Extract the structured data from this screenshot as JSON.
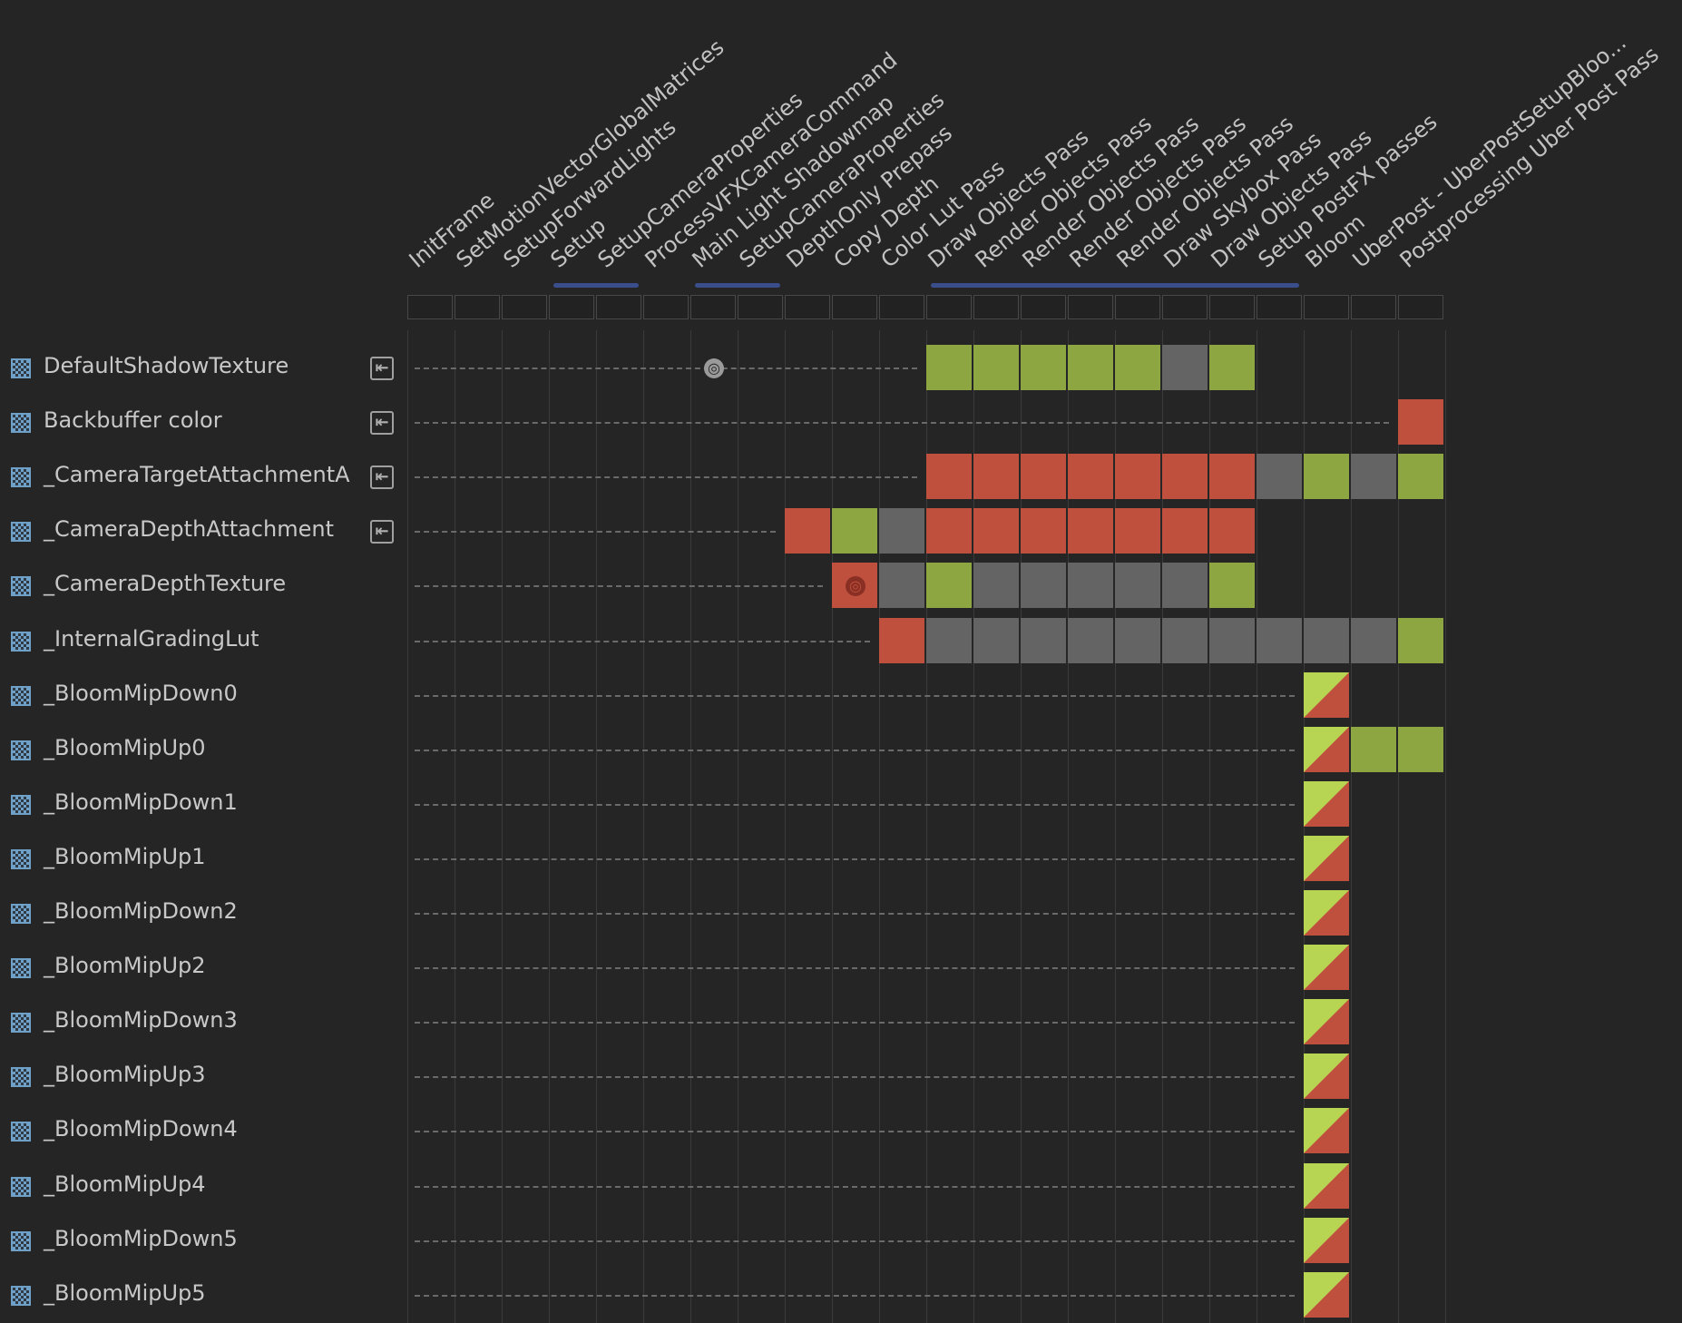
{
  "passes": [
    {
      "name": "InitFrame"
    },
    {
      "name": "SetMotionVectorGlobalMatrices"
    },
    {
      "name": "SetupForwardLights"
    },
    {
      "name": "Setup"
    },
    {
      "name": "SetupCameraProperties"
    },
    {
      "name": "ProcessVFXCameraCommand"
    },
    {
      "name": "Main Light Shadowmap"
    },
    {
      "name": "SetupCameraProperties"
    },
    {
      "name": "DepthOnly Prepass"
    },
    {
      "name": "Copy Depth"
    },
    {
      "name": "Color Lut Pass"
    },
    {
      "name": "Draw Objects Pass"
    },
    {
      "name": "Render Objects Pass"
    },
    {
      "name": "Render Objects Pass"
    },
    {
      "name": "Render Objects Pass"
    },
    {
      "name": "Render Objects Pass"
    },
    {
      "name": "Draw Skybox Pass"
    },
    {
      "name": "Draw Objects Pass"
    },
    {
      "name": "Setup PostFX passes"
    },
    {
      "name": "Bloom"
    },
    {
      "name": "UberPost - UberPostSetupBloo..."
    },
    {
      "name": "Postprocessing Uber Post Pass"
    }
  ],
  "pass_groups": [
    {
      "start": 3,
      "end": 4
    },
    {
      "start": 6,
      "end": 7
    },
    {
      "start": 11,
      "end": 18
    }
  ],
  "resources": [
    {
      "name": "DefaultShadowTexture",
      "imported": true,
      "dash_end": 11,
      "globe": 6,
      "globe_dark": false,
      "cells": [
        [
          11,
          "read"
        ],
        [
          12,
          "read"
        ],
        [
          13,
          "read"
        ],
        [
          14,
          "read"
        ],
        [
          15,
          "read"
        ],
        [
          16,
          "unused"
        ],
        [
          17,
          "read"
        ]
      ]
    },
    {
      "name": "Backbuffer color",
      "imported": true,
      "dash_end": 21,
      "cells": [
        [
          21,
          "write"
        ]
      ]
    },
    {
      "name": "_CameraTargetAttachmentA",
      "imported": true,
      "dash_end": 11,
      "cells": [
        [
          11,
          "write"
        ],
        [
          12,
          "write"
        ],
        [
          13,
          "write"
        ],
        [
          14,
          "write"
        ],
        [
          15,
          "write"
        ],
        [
          16,
          "write"
        ],
        [
          17,
          "write"
        ],
        [
          18,
          "unused"
        ],
        [
          19,
          "read"
        ],
        [
          20,
          "unused"
        ],
        [
          21,
          "read"
        ]
      ]
    },
    {
      "name": "_CameraDepthAttachment",
      "imported": true,
      "dash_end": 8,
      "cells": [
        [
          8,
          "write"
        ],
        [
          9,
          "read"
        ],
        [
          10,
          "unused"
        ],
        [
          11,
          "write"
        ],
        [
          12,
          "write"
        ],
        [
          13,
          "write"
        ],
        [
          14,
          "write"
        ],
        [
          15,
          "write"
        ],
        [
          16,
          "write"
        ],
        [
          17,
          "write"
        ]
      ]
    },
    {
      "name": "_CameraDepthTexture",
      "imported": false,
      "dash_end": 9,
      "globe": 9,
      "globe_dark": true,
      "cells": [
        [
          9,
          "write"
        ],
        [
          10,
          "unused"
        ],
        [
          11,
          "read"
        ],
        [
          12,
          "unused"
        ],
        [
          13,
          "unused"
        ],
        [
          14,
          "unused"
        ],
        [
          15,
          "unused"
        ],
        [
          16,
          "unused"
        ],
        [
          17,
          "read"
        ]
      ]
    },
    {
      "name": "_InternalGradingLut",
      "imported": false,
      "dash_end": 10,
      "cells": [
        [
          10,
          "write"
        ],
        [
          11,
          "unused"
        ],
        [
          12,
          "unused"
        ],
        [
          13,
          "unused"
        ],
        [
          14,
          "unused"
        ],
        [
          15,
          "unused"
        ],
        [
          16,
          "unused"
        ],
        [
          17,
          "unused"
        ],
        [
          18,
          "unused"
        ],
        [
          19,
          "unused"
        ],
        [
          20,
          "unused"
        ],
        [
          21,
          "read"
        ]
      ]
    },
    {
      "name": "_BloomMipDown0",
      "imported": false,
      "dash_end": 19,
      "cells": [
        [
          19,
          "rw"
        ]
      ]
    },
    {
      "name": "_BloomMipUp0",
      "imported": false,
      "dash_end": 19,
      "cells": [
        [
          19,
          "rw"
        ],
        [
          20,
          "read"
        ],
        [
          21,
          "read"
        ]
      ]
    },
    {
      "name": "_BloomMipDown1",
      "imported": false,
      "dash_end": 19,
      "cells": [
        [
          19,
          "rw"
        ]
      ]
    },
    {
      "name": "_BloomMipUp1",
      "imported": false,
      "dash_end": 19,
      "cells": [
        [
          19,
          "rw"
        ]
      ]
    },
    {
      "name": "_BloomMipDown2",
      "imported": false,
      "dash_end": 19,
      "cells": [
        [
          19,
          "rw"
        ]
      ]
    },
    {
      "name": "_BloomMipUp2",
      "imported": false,
      "dash_end": 19,
      "cells": [
        [
          19,
          "rw"
        ]
      ]
    },
    {
      "name": "_BloomMipDown3",
      "imported": false,
      "dash_end": 19,
      "cells": [
        [
          19,
          "rw"
        ]
      ]
    },
    {
      "name": "_BloomMipUp3",
      "imported": false,
      "dash_end": 19,
      "cells": [
        [
          19,
          "rw"
        ]
      ]
    },
    {
      "name": "_BloomMipDown4",
      "imported": false,
      "dash_end": 19,
      "cells": [
        [
          19,
          "rw"
        ]
      ]
    },
    {
      "name": "_BloomMipUp4",
      "imported": false,
      "dash_end": 19,
      "cells": [
        [
          19,
          "rw"
        ]
      ]
    },
    {
      "name": "_BloomMipDown5",
      "imported": false,
      "dash_end": 19,
      "cells": [
        [
          19,
          "rw"
        ]
      ]
    },
    {
      "name": "_BloomMipUp5",
      "imported": false,
      "dash_end": 19,
      "cells": [
        [
          19,
          "rw"
        ]
      ]
    }
  ],
  "colors": {
    "write": "#c0503e",
    "read": "#8ea641",
    "unused": "#646464",
    "group_bar": "#3a4e8c",
    "resource_icon": "#6fa0c8"
  },
  "icons": {
    "resource": "texture-icon",
    "imported": "import-icon",
    "globe": "globe-icon"
  }
}
